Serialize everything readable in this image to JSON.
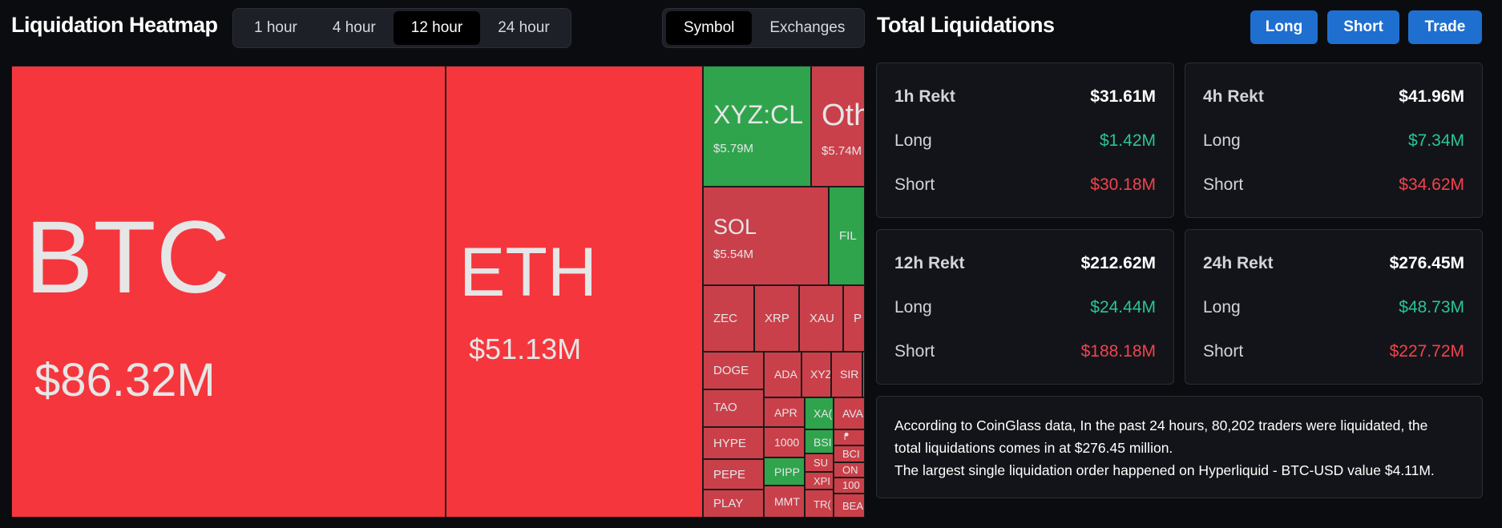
{
  "heatmap": {
    "title": "Liquidation Heatmap",
    "timeframes": [
      "1 hour",
      "4 hour",
      "12 hour",
      "24 hour"
    ],
    "active_timeframe": "12 hour",
    "views": [
      "Symbol",
      "Exchanges"
    ],
    "active_view": "Symbol",
    "cells": {
      "btc": {
        "symbol": "BTC",
        "value": "$86.32M"
      },
      "eth": {
        "symbol": "ETH",
        "value": "$51.13M"
      },
      "xyzcl": {
        "symbol": "XYZ:CL",
        "value": "$5.79M"
      },
      "others": {
        "symbol": "Oth",
        "value": "$5.74M"
      },
      "sol": {
        "symbol": "SOL",
        "value": "$5.54M"
      },
      "fil": {
        "symbol": "FIL"
      },
      "zec": {
        "symbol": "ZEC"
      },
      "xrp": {
        "symbol": "XRP"
      },
      "xau": {
        "symbol": "XAU"
      },
      "p": {
        "symbol": "P"
      },
      "doge": {
        "symbol": "DOGE"
      },
      "ada": {
        "symbol": "ADA"
      },
      "xyz": {
        "symbol": "XYZ"
      },
      "sir": {
        "symbol": "SIR"
      },
      "tao": {
        "symbol": "TAO"
      },
      "apr": {
        "symbol": "APR"
      },
      "xa": {
        "symbol": "XA("
      },
      "av": {
        "symbol": "AVA"
      },
      "hype": {
        "symbol": "HYPE"
      },
      "k1000": {
        "symbol": "1000"
      },
      "bs": {
        "symbol": "BSI"
      },
      "zh": {
        "symbol": "ᖰ"
      },
      "pepe": {
        "symbol": "PEPE"
      },
      "pipp": {
        "symbol": "PIPP"
      },
      "su": {
        "symbol": "SU"
      },
      "bc": {
        "symbol": "BCI"
      },
      "on": {
        "symbol": "ON"
      },
      "play": {
        "symbol": "PLAY"
      },
      "mmt": {
        "symbol": "MMT"
      },
      "xp": {
        "symbol": "XPI"
      },
      "c100": {
        "symbol": "100"
      },
      "tr": {
        "symbol": "TR("
      },
      "be": {
        "symbol": "BEA"
      }
    }
  },
  "total": {
    "title": "Total Liquidations",
    "buttons": {
      "long": "Long",
      "short": "Short",
      "trade": "Trade"
    },
    "cards": [
      {
        "label": "1h Rekt",
        "total": "$31.61M",
        "long_label": "Long",
        "long": "$1.42M",
        "short_label": "Short",
        "short": "$30.18M"
      },
      {
        "label": "4h Rekt",
        "total": "$41.96M",
        "long_label": "Long",
        "long": "$7.34M",
        "short_label": "Short",
        "short": "$34.62M"
      },
      {
        "label": "12h Rekt",
        "total": "$212.62M",
        "long_label": "Long",
        "long": "$24.44M",
        "short_label": "Short",
        "short": "$188.18M"
      },
      {
        "label": "24h Rekt",
        "total": "$276.45M",
        "long_label": "Long",
        "long": "$48.73M",
        "short_label": "Short",
        "short": "$227.72M"
      }
    ],
    "info_line1": "According to CoinGlass data, In the past 24 hours, 80,202 traders were liquidated, the",
    "info_line2": "total liquidations comes in at $276.45 million.",
    "info_line3": "The largest single liquidation order happened on Hyperliquid - BTC-USD value $4.11M."
  },
  "colors": {
    "red": "#f5363d",
    "dark_red": "#c9404a",
    "green": "#2fa44d",
    "accent_blue": "#1e6fd0",
    "long_green": "#29c49a",
    "short_red": "#f2434c"
  }
}
